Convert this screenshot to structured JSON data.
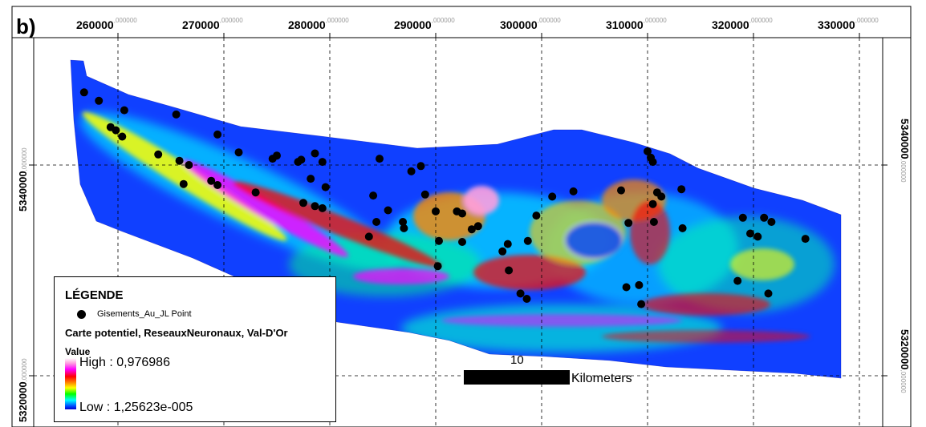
{
  "figure": {
    "panel_label": "b)"
  },
  "axes": {
    "x_ticks": [
      {
        "major": "260000",
        "minor": ",000000"
      },
      {
        "major": "270000",
        "minor": ",000000"
      },
      {
        "major": "280000",
        "minor": ",000000"
      },
      {
        "major": "290000",
        "minor": ",000000"
      },
      {
        "major": "300000",
        "minor": ",000000"
      },
      {
        "major": "310000",
        "minor": ",000000"
      },
      {
        "major": "320000",
        "minor": ",000000"
      },
      {
        "major": "330000",
        "minor": ",000000"
      }
    ],
    "y_ticks_left": [
      {
        "major": "5340000",
        "minor": ",000000"
      },
      {
        "major": "5320000",
        "minor": ",000000"
      }
    ],
    "y_ticks_right": [
      {
        "major": "5340000",
        "minor": ",000000"
      },
      {
        "major": "5320000",
        "minor": ",000000"
      }
    ]
  },
  "legend": {
    "title": "LÉGENDE",
    "point_layer": "Gisements_Au_JL Point",
    "raster_layer": "Carte potentiel, ReseauxNeuronaux, Val-D'Or",
    "value_title": "Value",
    "high_label": "High : 0,976986",
    "low_label": "Low : 1,25623e-005",
    "ramp_colors": [
      "#ffffff",
      "#ff9ee0",
      "#ff00ff",
      "#ff0000",
      "#ff8800",
      "#ffff00",
      "#00ff00",
      "#00ffff",
      "#0044ff",
      "#0000cc"
    ]
  },
  "scale_bar": {
    "value": "10",
    "unit": "Kilometers"
  },
  "map_colors": {
    "background_low": "#1040ff",
    "mid": "#00e0ff",
    "high": "#ff00ff",
    "point": "#000000"
  },
  "deposits": [
    [
      256800,
      5346900
    ],
    [
      258200,
      5346100
    ],
    [
      260600,
      5345200
    ],
    [
      265500,
      5344800
    ],
    [
      259300,
      5343600
    ],
    [
      259800,
      5343300
    ],
    [
      260400,
      5342700
    ],
    [
      269400,
      5342900
    ],
    [
      263800,
      5341000
    ],
    [
      271400,
      5341200
    ],
    [
      275000,
      5340900
    ],
    [
      265800,
      5340400
    ],
    [
      266700,
      5340000
    ],
    [
      274600,
      5340600
    ],
    [
      277300,
      5340500
    ],
    [
      278600,
      5341100
    ],
    [
      279300,
      5340300
    ],
    [
      284700,
      5340600
    ],
    [
      277000,
      5340300
    ],
    [
      287700,
      5339400
    ],
    [
      288600,
      5339900
    ],
    [
      266200,
      5338200
    ],
    [
      268800,
      5338500
    ],
    [
      269400,
      5338100
    ],
    [
      278200,
      5338700
    ],
    [
      279600,
      5337900
    ],
    [
      273000,
      5337400
    ],
    [
      284100,
      5337100
    ],
    [
      289000,
      5337200
    ],
    [
      277500,
      5336400
    ],
    [
      278600,
      5336100
    ],
    [
      279300,
      5335900
    ],
    [
      285500,
      5335700
    ],
    [
      290000,
      5335600
    ],
    [
      292000,
      5335600
    ],
    [
      292500,
      5335400
    ],
    [
      299500,
      5335200
    ],
    [
      301000,
      5337000
    ],
    [
      303000,
      5337500
    ],
    [
      307500,
      5337600
    ],
    [
      310000,
      5341300
    ],
    [
      310300,
      5340700
    ],
    [
      310500,
      5340300
    ],
    [
      310900,
      5337400
    ],
    [
      311300,
      5337000
    ],
    [
      310500,
      5336300
    ],
    [
      313200,
      5337700
    ],
    [
      284400,
      5334600
    ],
    [
      286900,
      5334600
    ],
    [
      287000,
      5334000
    ],
    [
      294000,
      5334200
    ],
    [
      293400,
      5333900
    ],
    [
      283700,
      5333200
    ],
    [
      290300,
      5332800
    ],
    [
      292500,
      5332700
    ],
    [
      298700,
      5332800
    ],
    [
      296800,
      5332500
    ],
    [
      308200,
      5334500
    ],
    [
      310600,
      5334600
    ],
    [
      313300,
      5334000
    ],
    [
      319000,
      5335000
    ],
    [
      321000,
      5335000
    ],
    [
      321700,
      5334600
    ],
    [
      319700,
      5333500
    ],
    [
      320400,
      5333200
    ],
    [
      324900,
      5333000
    ],
    [
      296300,
      5331800
    ],
    [
      296900,
      5330000
    ],
    [
      290200,
      5330400
    ],
    [
      298000,
      5327800
    ],
    [
      298600,
      5327300
    ],
    [
      318500,
      5329000
    ],
    [
      308000,
      5328400
    ],
    [
      309200,
      5328600
    ],
    [
      309400,
      5326800
    ],
    [
      321400,
      5327800
    ]
  ]
}
